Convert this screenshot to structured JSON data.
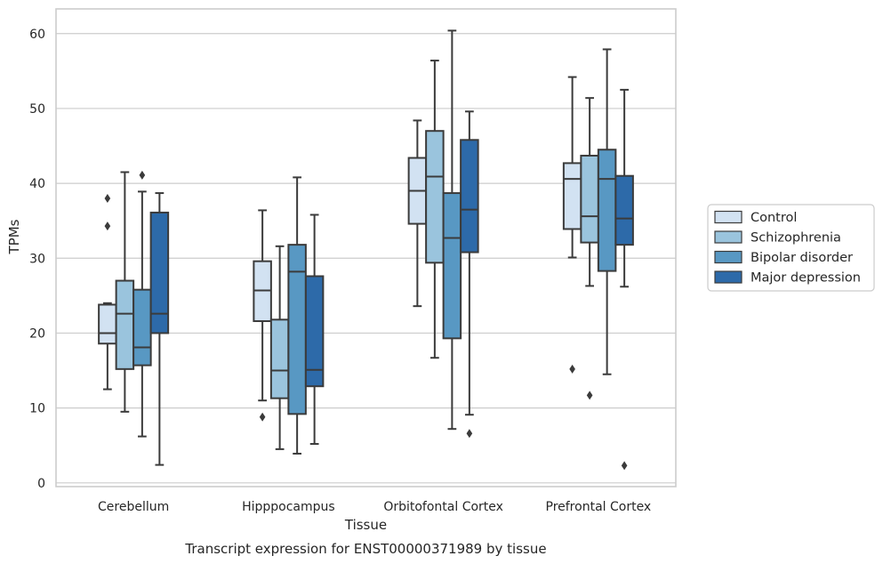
{
  "chart_data": {
    "type": "box",
    "xlabel": "Tissue",
    "ylabel": "TPMs",
    "caption": "Transcript expression for ENST00000371989 by tissue",
    "ylim": [
      -0.5,
      63.3
    ],
    "yticks": [
      0,
      10,
      20,
      30,
      40,
      50,
      60
    ],
    "grid": true,
    "legend_position": "right",
    "categories": [
      "Cerebellum",
      "Hipppocampus",
      "Orbitofontal Cortex",
      "Prefrontal Cortex"
    ],
    "series": [
      {
        "name": "Control",
        "color": "#d2e2f2",
        "boxes": [
          {
            "whislo": 12.5,
            "q1": 18.6,
            "med": 20.0,
            "q3": 23.8,
            "whishi": 24.0,
            "fliers": [
              34.3,
              38.0
            ]
          },
          {
            "whislo": 11.0,
            "q1": 21.6,
            "med": 25.7,
            "q3": 29.6,
            "whishi": 36.4,
            "fliers": [
              8.8
            ]
          },
          {
            "whislo": 23.6,
            "q1": 34.6,
            "med": 39.0,
            "q3": 43.4,
            "whishi": 48.4,
            "fliers": []
          },
          {
            "whislo": 30.1,
            "q1": 33.9,
            "med": 40.6,
            "q3": 42.7,
            "whishi": 54.2,
            "fliers": [
              15.2
            ]
          }
        ]
      },
      {
        "name": "Schizophrenia",
        "color": "#9ac4dd",
        "boxes": [
          {
            "whislo": 9.5,
            "q1": 15.2,
            "med": 22.6,
            "q3": 27.0,
            "whishi": 41.5,
            "fliers": []
          },
          {
            "whislo": 4.5,
            "q1": 11.3,
            "med": 15.0,
            "q3": 21.8,
            "whishi": 31.6,
            "fliers": []
          },
          {
            "whislo": 16.7,
            "q1": 29.4,
            "med": 40.9,
            "q3": 47.0,
            "whishi": 56.4,
            "fliers": []
          },
          {
            "whislo": 26.3,
            "q1": 32.1,
            "med": 35.6,
            "q3": 43.7,
            "whishi": 51.4,
            "fliers": [
              11.7
            ]
          }
        ]
      },
      {
        "name": "Bipolar disorder",
        "color": "#5898c3",
        "boxes": [
          {
            "whislo": 6.2,
            "q1": 15.7,
            "med": 18.1,
            "q3": 25.8,
            "whishi": 38.9,
            "fliers": [
              41.1
            ]
          },
          {
            "whislo": 3.9,
            "q1": 9.2,
            "med": 28.2,
            "q3": 31.8,
            "whishi": 40.8,
            "fliers": []
          },
          {
            "whislo": 7.2,
            "q1": 19.3,
            "med": 32.7,
            "q3": 38.7,
            "whishi": 60.4,
            "fliers": []
          },
          {
            "whislo": 14.5,
            "q1": 28.3,
            "med": 40.6,
            "q3": 44.5,
            "whishi": 57.9,
            "fliers": []
          }
        ]
      },
      {
        "name": "Major depression",
        "color": "#2d6aa9",
        "boxes": [
          {
            "whislo": 2.4,
            "q1": 20.0,
            "med": 22.6,
            "q3": 36.1,
            "whishi": 38.7,
            "fliers": []
          },
          {
            "whislo": 5.2,
            "q1": 12.9,
            "med": 15.1,
            "q3": 27.6,
            "whishi": 35.8,
            "fliers": []
          },
          {
            "whislo": 9.1,
            "q1": 30.8,
            "med": 36.5,
            "q3": 45.8,
            "whishi": 49.6,
            "fliers": [
              6.6
            ]
          },
          {
            "whislo": 26.2,
            "q1": 31.8,
            "med": 35.3,
            "q3": 41.0,
            "whishi": 52.5,
            "fliers": [
              2.3
            ]
          }
        ]
      }
    ]
  }
}
